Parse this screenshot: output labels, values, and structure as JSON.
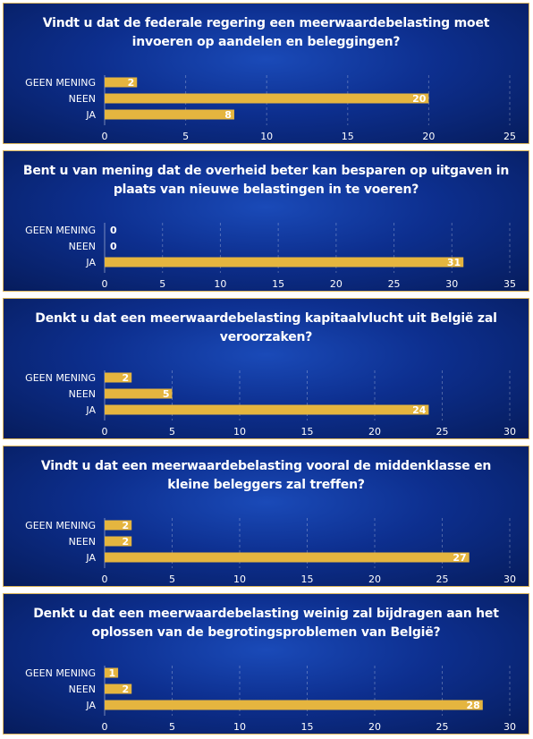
{
  "chart_data": [
    {
      "type": "bar",
      "title": "Vindt u dat de federale regering een meerwaardebelasting moet invoeren op aandelen en beleggingen?",
      "categories": [
        "GEEN MENING",
        "NEEN",
        "JA"
      ],
      "values": [
        2,
        20,
        8
      ],
      "xlim": [
        0,
        25
      ],
      "ticks": [
        0,
        5,
        10,
        15,
        20,
        25
      ],
      "bar_color": "#e5b53f",
      "grid": true
    },
    {
      "type": "bar",
      "title": "Bent u van mening dat de overheid beter kan besparen op uitgaven in plaats van nieuwe belastingen in te voeren?",
      "categories": [
        "GEEN MENING",
        "NEEN",
        "JA"
      ],
      "values": [
        0,
        0,
        31
      ],
      "xlim": [
        0,
        35
      ],
      "ticks": [
        0,
        5,
        10,
        15,
        20,
        25,
        30,
        35
      ],
      "bar_color": "#e5b53f",
      "grid": true
    },
    {
      "type": "bar",
      "title": "Denkt u dat een meerwaardebelasting kapitaalvlucht uit België zal veroorzaken?",
      "categories": [
        "GEEN MENING",
        "NEEN",
        "JA"
      ],
      "values": [
        2,
        5,
        24
      ],
      "xlim": [
        0,
        30
      ],
      "ticks": [
        0,
        5,
        10,
        15,
        20,
        25,
        30
      ],
      "bar_color": "#e5b53f",
      "grid": true
    },
    {
      "type": "bar",
      "title": "Vindt u dat een meerwaardebelasting vooral de middenklasse en kleine beleggers zal treffen?",
      "categories": [
        "GEEN MENING",
        "NEEN",
        "JA"
      ],
      "values": [
        2,
        2,
        27
      ],
      "xlim": [
        0,
        30
      ],
      "ticks": [
        0,
        5,
        10,
        15,
        20,
        25,
        30
      ],
      "bar_color": "#e5b53f",
      "grid": true
    },
    {
      "type": "bar",
      "title": "Denkt u dat een meerwaardebelasting weinig zal bijdragen aan het oplossen van de begrotingsproblemen van België?",
      "categories": [
        "GEEN MENING",
        "NEEN",
        "JA"
      ],
      "values": [
        1,
        2,
        28
      ],
      "xlim": [
        0,
        30
      ],
      "ticks": [
        0,
        5,
        10,
        15,
        20,
        25,
        30
      ],
      "bar_color": "#e5b53f",
      "grid": true
    }
  ]
}
